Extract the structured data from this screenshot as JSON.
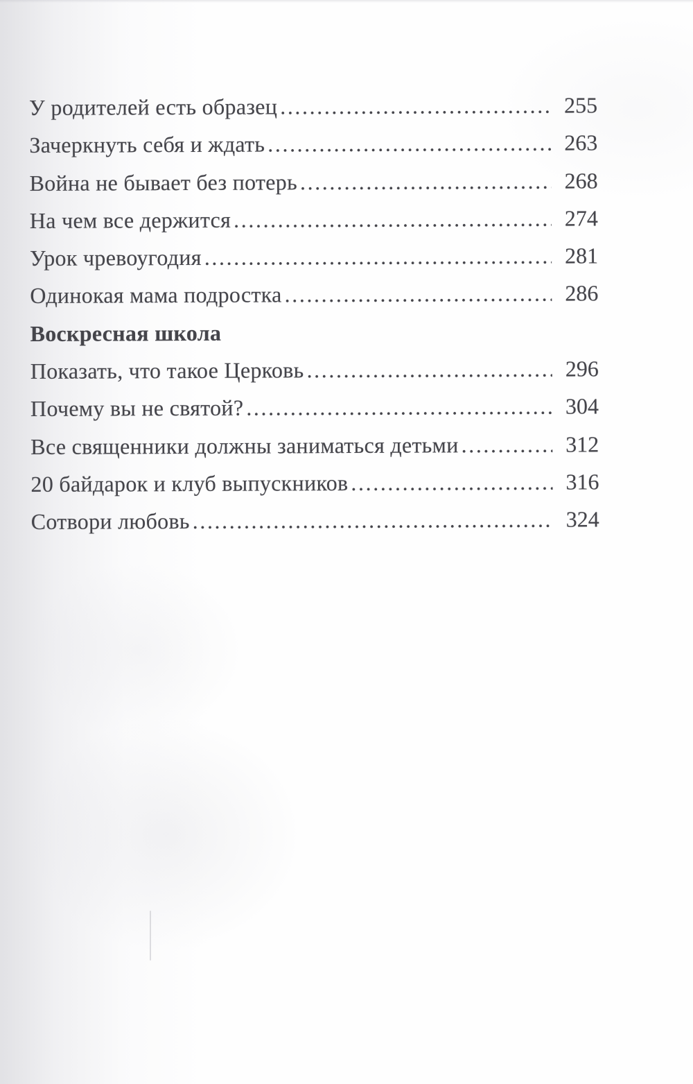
{
  "colors": {
    "text": "#45454b",
    "paper": "#fefefe",
    "edge_shadow": "#c2c2ca"
  },
  "toc": {
    "entries": [
      {
        "title": "У родителей есть образец",
        "page": "255"
      },
      {
        "title": "Зачеркнуть себя и ждать",
        "page": "263"
      },
      {
        "title": "Война не бывает без потерь",
        "page": "268"
      },
      {
        "title": "На чем все держится",
        "page": "274"
      },
      {
        "title": "Урок чревоугодия",
        "page": "281"
      },
      {
        "title": "Одинокая мама подростка",
        "page": "286"
      },
      {
        "title": "Воскресная школа",
        "page": ""
      },
      {
        "title": "Показать, что такое Церковь",
        "page": "296"
      },
      {
        "title": "Почему вы не святой?",
        "page": "304"
      },
      {
        "title": "Все священники должны заниматься детьми",
        "page": "312"
      },
      {
        "title": "20 байдарок и клуб выпускников",
        "page": "316"
      },
      {
        "title": "Сотвори любовь",
        "page": "324"
      }
    ]
  }
}
